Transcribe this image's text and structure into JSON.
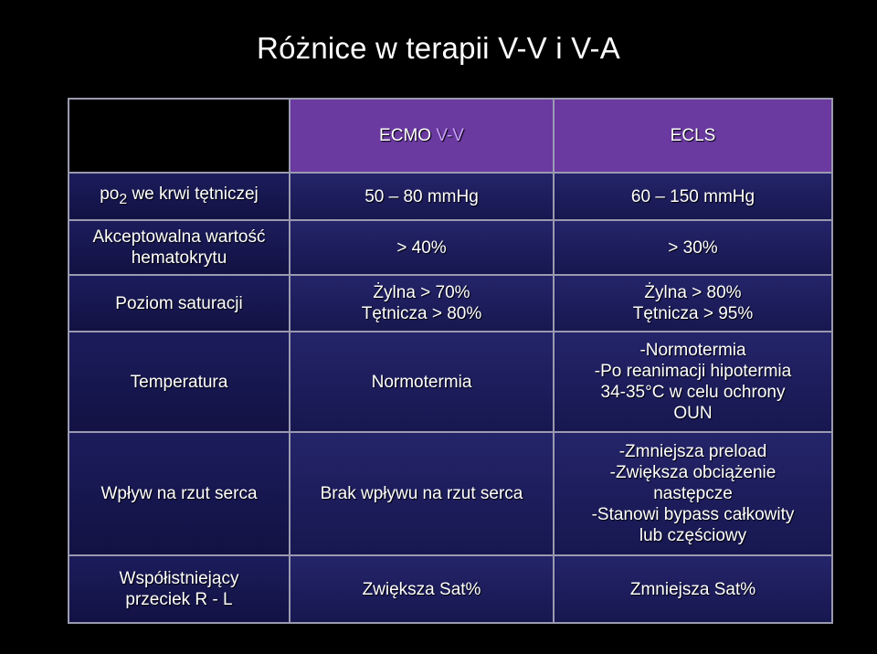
{
  "title": "Różnice w terapii V-V i V-A",
  "headers": {
    "col1": "ECMO V-V",
    "col1_prefix": "ECMO ",
    "col1_accent": "V-V",
    "col2": "ECLS"
  },
  "rows": [
    {
      "label": "po2 we krwi tętniczej",
      "label_main": "po",
      "label_sub": "2",
      "label_rest": " we krwi tętniczej",
      "vv": [
        "50 – 80 mmHg"
      ],
      "ecls": [
        "60 – 150 mmHg"
      ]
    },
    {
      "label": [
        "Akceptowalna wartość",
        "hematokrytu"
      ],
      "vv": [
        "> 40%"
      ],
      "ecls": [
        "> 30%"
      ]
    },
    {
      "label": [
        "Poziom saturacji"
      ],
      "vv": [
        "Żylna  > 70%",
        "Tętnicza > 80%"
      ],
      "ecls": [
        "Żylna > 80%",
        "Tętnicza > 95%"
      ]
    },
    {
      "label": [
        "Temperatura"
      ],
      "vv": [
        "Normotermia"
      ],
      "ecls": [
        "-Normotermia",
        "-Po reanimacji hipotermia",
        "34-35°C w celu ochrony",
        "OUN"
      ]
    },
    {
      "label": [
        "Wpływ na rzut serca"
      ],
      "vv": [
        "Brak wpływu na rzut serca"
      ],
      "ecls": [
        "-Zmniejsza preload",
        "-Zwiększa obciążenie",
        "następcze",
        "-Stanowi bypass całkowity",
        "lub częściowy"
      ]
    },
    {
      "label": [
        "Współistniejący",
        "przeciek R - L"
      ],
      "vv": [
        "Zwiększa Sat%"
      ],
      "ecls": [
        "Zmniejsza Sat%"
      ]
    }
  ],
  "colors": {
    "header_bg": "#6a3aa0",
    "cell_bg": "#1c1c5c",
    "accent": "#c9a0ff",
    "border": "#9a9ab0"
  }
}
